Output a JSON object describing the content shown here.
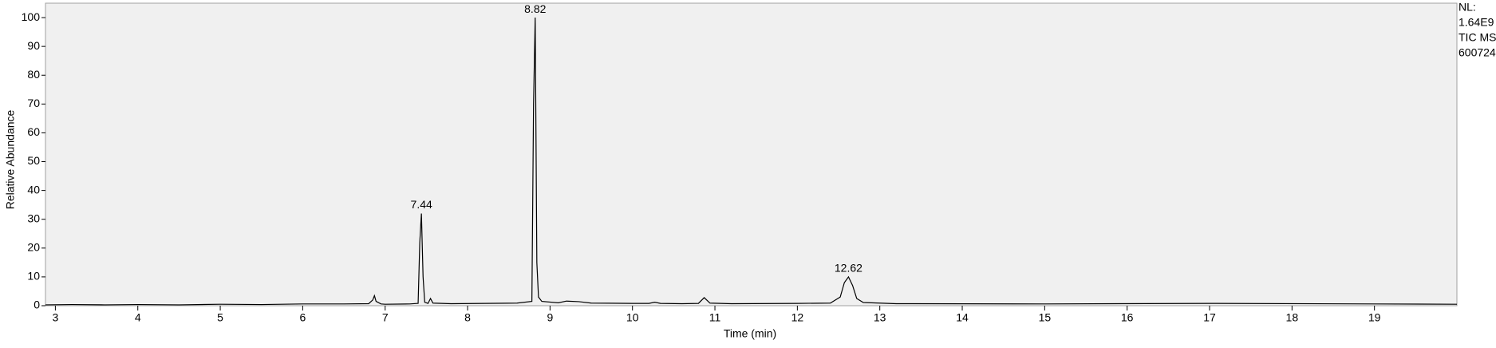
{
  "chart_data": {
    "type": "line",
    "x_label": "Time (min)",
    "y_label": "Relative Abundance",
    "side_labels": [
      "NL:",
      "1.64E9",
      "TIC MS",
      "600724"
    ],
    "xlim": [
      2.88,
      20.0
    ],
    "xticks": [
      3,
      4,
      5,
      6,
      7,
      8,
      9,
      10,
      11,
      12,
      13,
      14,
      15,
      16,
      17,
      18,
      19
    ],
    "ylim": [
      0,
      105
    ],
    "yticks": [
      0,
      10,
      20,
      30,
      40,
      50,
      60,
      70,
      80,
      90,
      100
    ],
    "series": [
      {
        "color": "#000000",
        "x": [
          2.88,
          3.2,
          3.6,
          4.0,
          4.5,
          5.0,
          5.5,
          6.0,
          6.5,
          6.8,
          6.85,
          6.87,
          6.89,
          6.95,
          7.0,
          7.3,
          7.4,
          7.42,
          7.44,
          7.46,
          7.48,
          7.52,
          7.55,
          7.58,
          7.8,
          8.2,
          8.6,
          8.78,
          8.8,
          8.82,
          8.84,
          8.86,
          8.9,
          9.1,
          9.2,
          9.35,
          9.5,
          10.0,
          10.2,
          10.27,
          10.34,
          10.6,
          10.8,
          10.87,
          10.94,
          11.2,
          12.0,
          12.4,
          12.52,
          12.57,
          12.62,
          12.67,
          12.72,
          12.8,
          13.2,
          15.0,
          17.0,
          19.0,
          20.0
        ],
        "values": [
          0.3,
          0.4,
          0.3,
          0.4,
          0.3,
          0.5,
          0.4,
          0.6,
          0.6,
          0.7,
          2,
          3.5,
          1.5,
          0.6,
          0.5,
          0.6,
          0.8,
          22,
          32,
          10,
          1.2,
          0.8,
          2.5,
          0.9,
          0.7,
          0.8,
          0.9,
          1.5,
          70,
          100,
          15,
          3,
          1.5,
          1,
          1.6,
          1.4,
          0.9,
          0.8,
          0.8,
          1.2,
          0.8,
          0.7,
          0.8,
          2.8,
          0.9,
          0.7,
          0.8,
          0.9,
          3,
          8,
          10,
          7,
          2.5,
          1.1,
          0.7,
          0.6,
          0.8,
          0.6,
          0.5
        ]
      }
    ],
    "annotations": [
      {
        "text": "7.44",
        "x": 7.44,
        "y": 32
      },
      {
        "text": "8.82",
        "x": 8.82,
        "y": 100
      },
      {
        "text": "12.62",
        "x": 12.62,
        "y": 10
      }
    ]
  }
}
